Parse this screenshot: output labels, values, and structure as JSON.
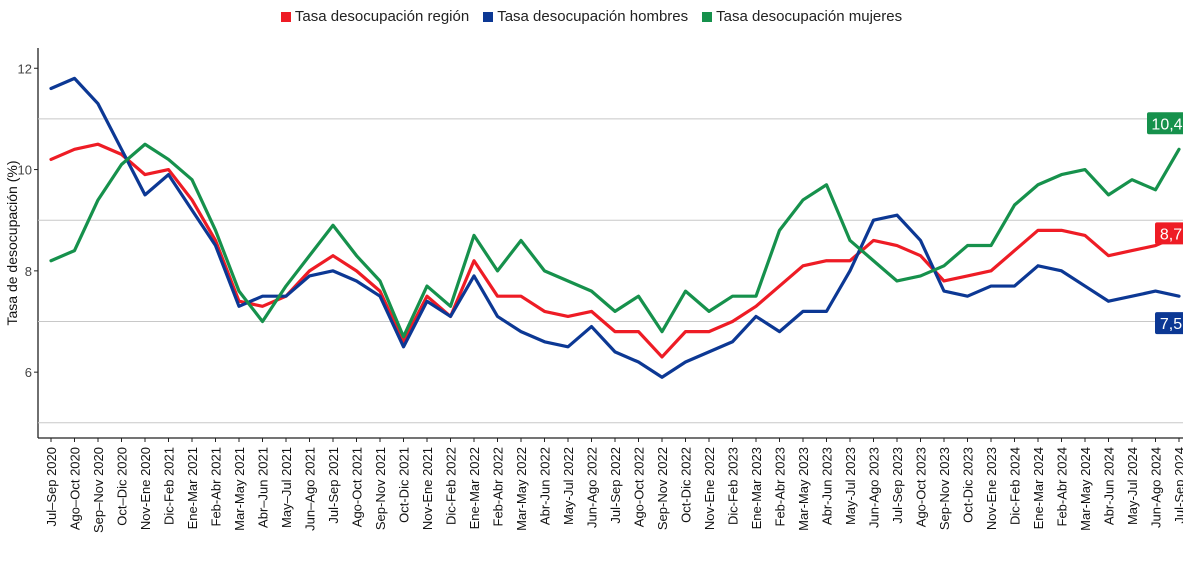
{
  "chart_data": {
    "type": "line",
    "ylabel": "Tasa de desocupación (%)",
    "xlabel": "",
    "ylim": [
      4.7,
      12.4
    ],
    "yticks": [
      6,
      8,
      10,
      12
    ],
    "gridlines": [
      5,
      7,
      9,
      11
    ],
    "legend_position": "top",
    "categories": [
      "Jul–Sep 2020",
      "Ago–Oct 2020",
      "Sep–Nov 2020",
      "Oct–Dic 2020",
      "Nov-Ene 2020",
      "Dic-Feb 2021",
      "Ene-Mar 2021",
      "Feb-Abr 2021",
      "Mar-May 2021",
      "Abr–Jun 2021",
      "May–Jul 2021",
      "Jun–Ago 2021",
      "Jul-Sep 2021",
      "Ago-Oct 2021",
      "Sep-Nov 2021",
      "Oct-Dic 2021",
      "Nov-Ene 2021",
      "Dic-Feb 2022",
      "Ene-Mar 2022",
      "Feb-Abr 2022",
      "Mar-May 2022",
      "Abr-Jun 2022",
      "May-Jul 2022",
      "Jun-Ago 2022",
      "Jul-Sep 2022",
      "Ago-Oct 2022",
      "Sep-Nov 2022",
      "Oct-Dic 2022",
      "Nov-Ene 2022",
      "Dic-Feb 2023",
      "Ene-Mar 2023",
      "Feb-Abr 2023",
      "Mar-May 2023",
      "Abr-Jun 2023",
      "May-Jul 2023",
      "Jun-Ago 2023",
      "Jul-Sep 2023",
      "Ago-Oct 2023",
      "Sep-Nov 2023",
      "Oct-Dic 2023",
      "Nov-Ene 2023",
      "Dic-Feb 2024",
      "Ene-Mar 2024",
      "Feb-Abr 2024",
      "Mar-May 2024",
      "Abr-Jun 2024",
      "May-Jul 2024",
      "Jun-Ago 2024",
      "Jul-Sep 2024"
    ],
    "series": [
      {
        "name": "Tasa desocupación región",
        "color": "#ee1c25",
        "end_label": "8,7",
        "values": [
          10.2,
          10.4,
          10.5,
          10.3,
          9.9,
          10.0,
          9.4,
          8.6,
          7.4,
          7.3,
          7.5,
          8.0,
          8.3,
          8.0,
          7.6,
          6.6,
          7.5,
          7.1,
          8.2,
          7.5,
          7.5,
          7.2,
          7.1,
          7.2,
          6.8,
          6.8,
          6.3,
          6.8,
          6.8,
          7.0,
          7.3,
          7.7,
          8.1,
          8.2,
          8.2,
          8.6,
          8.5,
          8.3,
          7.8,
          7.9,
          8.0,
          8.4,
          8.8,
          8.8,
          8.7,
          8.3,
          8.4,
          8.5,
          8.7
        ]
      },
      {
        "name": "Tasa desocupación hombres",
        "color": "#0c3894",
        "end_label": "7,5",
        "values": [
          11.6,
          11.8,
          11.3,
          10.4,
          9.5,
          9.9,
          9.2,
          8.5,
          7.3,
          7.5,
          7.5,
          7.9,
          8.0,
          7.8,
          7.5,
          6.5,
          7.4,
          7.1,
          7.9,
          7.1,
          6.8,
          6.6,
          6.5,
          6.9,
          6.4,
          6.2,
          5.9,
          6.2,
          6.4,
          6.6,
          7.1,
          6.8,
          7.2,
          7.2,
          8.0,
          9.0,
          9.1,
          8.6,
          7.6,
          7.5,
          7.7,
          7.7,
          8.1,
          8.0,
          7.7,
          7.4,
          7.5,
          7.6,
          7.5
        ]
      },
      {
        "name": "Tasa desocupación mujeres",
        "color": "#16914c",
        "end_label": "10,4",
        "values": [
          8.2,
          8.4,
          9.4,
          10.1,
          10.5,
          10.2,
          9.8,
          8.8,
          7.6,
          7.0,
          7.7,
          8.3,
          8.9,
          8.3,
          7.8,
          6.7,
          7.7,
          7.3,
          8.7,
          8.0,
          8.6,
          8.0,
          7.8,
          7.6,
          7.2,
          7.5,
          6.8,
          7.6,
          7.2,
          7.5,
          7.5,
          8.8,
          9.4,
          9.7,
          8.6,
          8.2,
          7.8,
          7.9,
          8.1,
          8.5,
          8.5,
          9.3,
          9.7,
          9.9,
          10.0,
          9.5,
          9.8,
          9.6,
          10.4
        ]
      }
    ]
  }
}
